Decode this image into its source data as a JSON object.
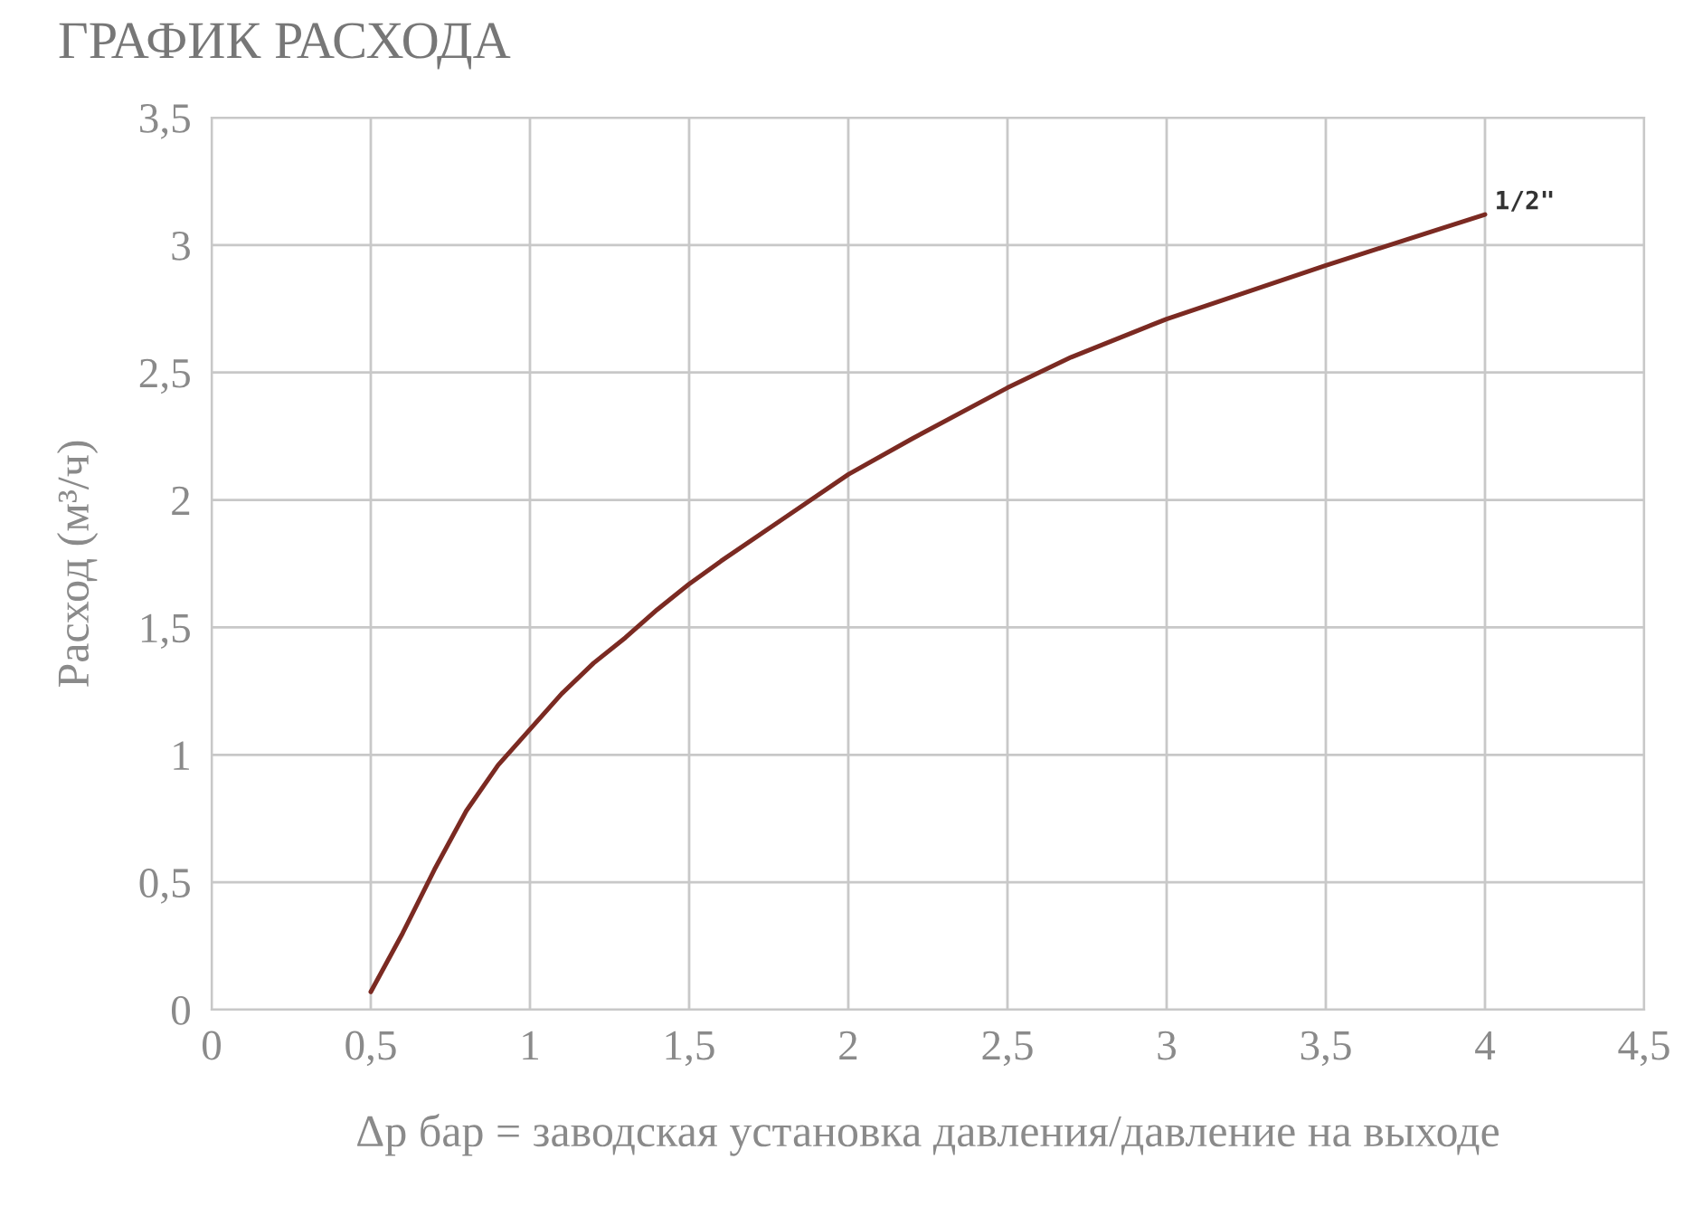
{
  "chart_data": {
    "type": "line",
    "title": "ГРАФИК РАСХОДА",
    "xlabel": "Δp бар = заводская установка давления/давление на выходе",
    "ylabel": "Расход (м³/ч)",
    "series": [
      {
        "name": "1/2\"",
        "color": "#7b2a22",
        "x": [
          0.5,
          0.6,
          0.7,
          0.8,
          0.9,
          1.0,
          1.1,
          1.2,
          1.3,
          1.4,
          1.5,
          1.6,
          1.8,
          2.0,
          2.2,
          2.5,
          2.7,
          3.0,
          3.5,
          4.0
        ],
        "values": [
          0.07,
          0.3,
          0.55,
          0.78,
          0.96,
          1.1,
          1.24,
          1.36,
          1.46,
          1.57,
          1.67,
          1.76,
          1.93,
          2.1,
          2.24,
          2.44,
          2.56,
          2.71,
          2.92,
          3.12
        ]
      }
    ],
    "xlim": [
      0,
      4.5
    ],
    "ylim": [
      0,
      3.5
    ],
    "xticks": [
      0,
      {
        "value": 0.5,
        "label": "0,5"
      },
      1,
      {
        "value": 1.5,
        "label": "1,5"
      },
      2,
      {
        "value": 2.5,
        "label": "2,5"
      },
      3,
      {
        "value": 3.5,
        "label": "3,5"
      },
      4,
      {
        "value": 4.5,
        "label": "4,5"
      }
    ],
    "yticks": [
      0,
      {
        "value": 0.5,
        "label": "0,5"
      },
      1,
      {
        "value": 1.5,
        "label": "1,5"
      },
      2,
      {
        "value": 2.5,
        "label": "2,5"
      },
      3,
      {
        "value": 3.5,
        "label": "3,5"
      }
    ],
    "grid": true,
    "legend": false,
    "marker": "none",
    "line_style": "solid"
  }
}
